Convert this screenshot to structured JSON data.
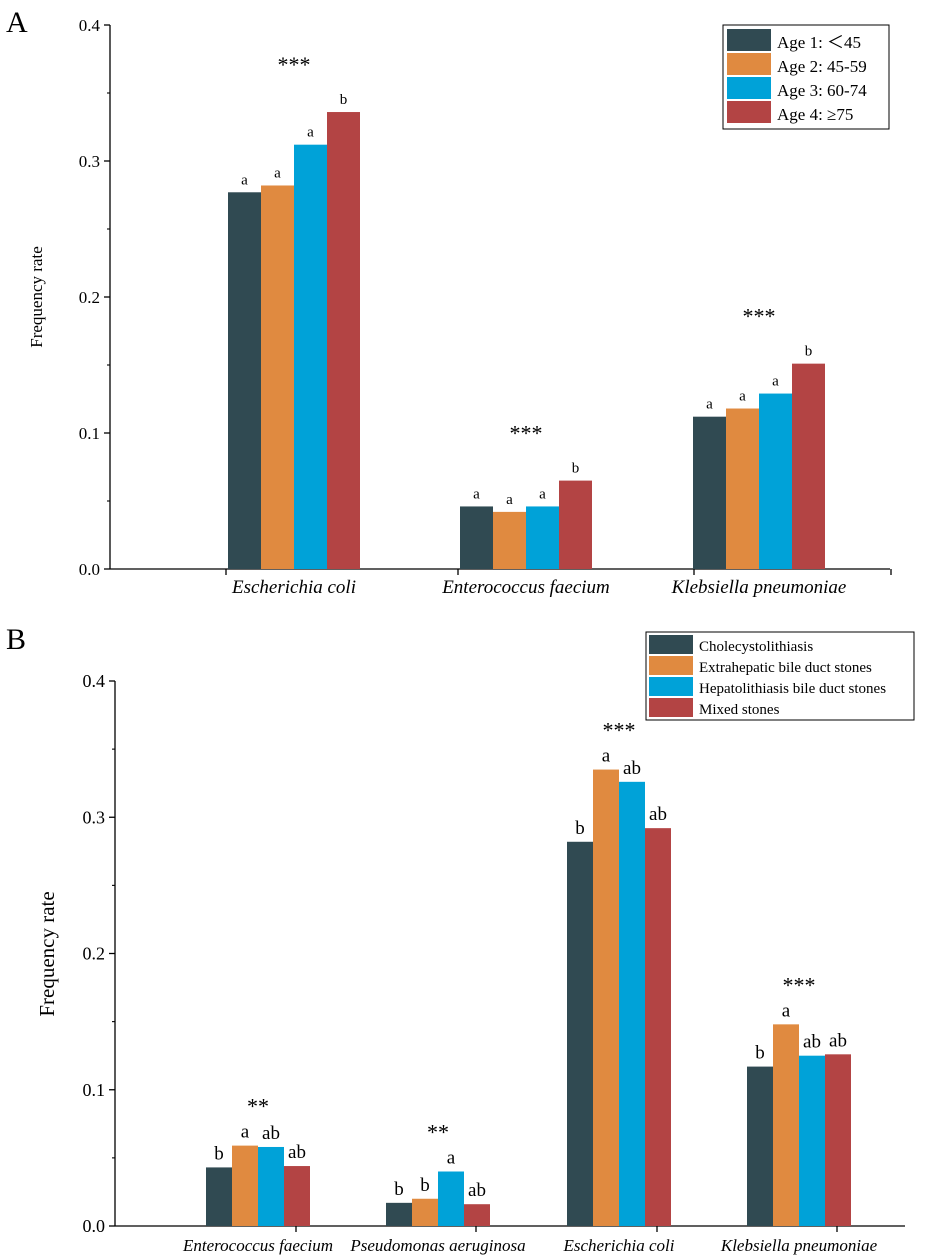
{
  "chart_data": [
    {
      "panel": "A",
      "type": "bar",
      "title": "",
      "xlabel": "",
      "ylabel": "Frequency rate",
      "ylim": [
        0,
        0.4
      ],
      "yticks": [
        "0.0",
        "0.1",
        "0.2",
        "0.3",
        "0.4"
      ],
      "categories": [
        "Escherichia coli",
        "Enterococcus faecium",
        "Klebsiella pneumoniae"
      ],
      "series": [
        {
          "name": "Age 1: ＜45",
          "color": "#304a52",
          "values": [
            0.277,
            0.046,
            0.112
          ]
        },
        {
          "name": "Age 2: 45-59",
          "color": "#e08a40",
          "values": [
            0.282,
            0.042,
            0.118
          ]
        },
        {
          "name": "Age 3: 60-74",
          "color": "#00a2d8",
          "values": [
            0.312,
            0.046,
            0.129
          ]
        },
        {
          "name": "Age 4: ≥75",
          "color": "#b34444",
          "values": [
            0.336,
            0.065,
            0.151
          ]
        }
      ],
      "bar_letters": [
        [
          "a",
          "a",
          "a",
          "b"
        ],
        [
          "a",
          "a",
          "a",
          "b"
        ],
        [
          "a",
          "a",
          "a",
          "b"
        ]
      ],
      "significance": [
        "***",
        "***",
        "***"
      ],
      "legend_position": "top-right"
    },
    {
      "panel": "B",
      "type": "bar",
      "title": "",
      "xlabel": "",
      "ylabel": "Frequency rate",
      "ylim": [
        0,
        0.4
      ],
      "yticks": [
        "0.0",
        "0.1",
        "0.2",
        "0.3",
        "0.4"
      ],
      "categories": [
        "Enterococcus faecium",
        "Pseudomonas aeruginosa",
        "Escherichia coli",
        "Klebsiella pneumoniae"
      ],
      "series": [
        {
          "name": "Cholecystolithiasis",
          "color": "#304a52",
          "values": [
            0.043,
            0.017,
            0.282,
            0.117
          ]
        },
        {
          "name": "Extrahepatic bile duct stones",
          "color": "#e08a40",
          "values": [
            0.059,
            0.02,
            0.335,
            0.148
          ]
        },
        {
          "name": "Hepatolithiasis bile duct stones",
          "color": "#00a2d8",
          "values": [
            0.058,
            0.04,
            0.326,
            0.125
          ]
        },
        {
          "name": "Mixed stones",
          "color": "#b34444",
          "values": [
            0.044,
            0.016,
            0.292,
            0.126
          ]
        }
      ],
      "bar_letters": [
        [
          "b",
          "a",
          "ab",
          "ab"
        ],
        [
          "b",
          "b",
          "a",
          "ab"
        ],
        [
          "b",
          "a",
          "ab",
          "ab"
        ],
        [
          "b",
          "a",
          "ab",
          "ab"
        ]
      ],
      "significance": [
        "**",
        "**",
        "***",
        "***"
      ],
      "legend_position": "top-right"
    }
  ]
}
